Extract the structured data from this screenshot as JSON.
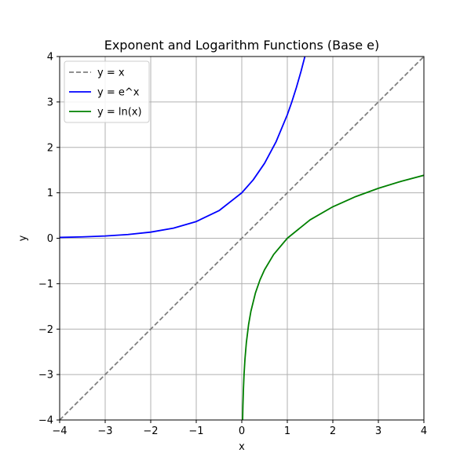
{
  "chart_data": {
    "type": "line",
    "title": "Exponent and Logarithm Functions (Base e)",
    "xlabel": "x",
    "ylabel": "y",
    "xlim": [
      -4,
      4
    ],
    "ylim": [
      -4,
      4
    ],
    "xticks": [
      -4,
      -3,
      -2,
      -1,
      0,
      1,
      2,
      3,
      4
    ],
    "yticks": [
      -4,
      -3,
      -2,
      -1,
      0,
      1,
      2,
      3,
      4
    ],
    "grid": true,
    "legend_position": "top-left",
    "series": [
      {
        "name": "y = x",
        "color": "#808080",
        "style": "dashed",
        "x": [
          -4,
          4
        ],
        "y": [
          -4,
          4
        ]
      },
      {
        "name": "y = e^x",
        "color": "#0000ff",
        "style": "solid",
        "x": [
          -4,
          -3.5,
          -3,
          -2.5,
          -2,
          -1.5,
          -1,
          -0.5,
          0,
          0.25,
          0.5,
          0.75,
          1,
          1.1,
          1.2,
          1.3,
          1.386
        ],
        "y": [
          0.018,
          0.03,
          0.05,
          0.082,
          0.135,
          0.223,
          0.368,
          0.607,
          1.0,
          1.284,
          1.649,
          2.117,
          2.718,
          3.004,
          3.32,
          3.669,
          4.0
        ]
      },
      {
        "name": "y = ln(x)",
        "color": "#008000",
        "style": "solid",
        "x": [
          0.0183,
          0.025,
          0.035,
          0.05,
          0.07,
          0.1,
          0.15,
          0.2,
          0.3,
          0.4,
          0.5,
          0.7,
          1,
          1.5,
          2,
          2.5,
          3,
          3.5,
          4
        ],
        "y": [
          -4.0,
          -3.689,
          -3.352,
          -2.996,
          -2.659,
          -2.303,
          -1.897,
          -1.609,
          -1.204,
          -0.916,
          -0.693,
          -0.357,
          0,
          0.405,
          0.693,
          0.916,
          1.099,
          1.253,
          1.386
        ]
      }
    ]
  }
}
